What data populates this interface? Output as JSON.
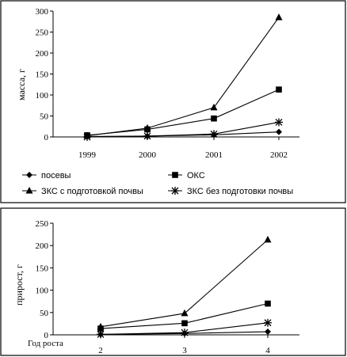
{
  "chart_data": [
    {
      "type": "line",
      "ylabel": "масса, г",
      "xlabel": "",
      "categories": [
        "1999",
        "2000",
        "2001",
        "2002"
      ],
      "ylim": [
        0,
        300
      ],
      "yticks": [
        "0",
        "50",
        "100",
        "150",
        "200",
        "250",
        "300"
      ],
      "grid": false,
      "legend_position": "bottom",
      "series": [
        {
          "name": "посевы",
          "marker": "diamond",
          "values": [
            1,
            2,
            5,
            12
          ]
        },
        {
          "name": "ОКС",
          "marker": "square",
          "values": [
            4,
            18,
            44,
            113
          ]
        },
        {
          "name": "ЗКС с подготовкой почвы",
          "marker": "triangle",
          "values": [
            3,
            21,
            70,
            285
          ]
        },
        {
          "name": "ЗКС без подготовки почвы",
          "marker": "star",
          "values": [
            0,
            2,
            7,
            35
          ]
        }
      ]
    },
    {
      "type": "line",
      "ylabel": "прирост, г",
      "xlabel": "Год роста",
      "categories": [
        "2",
        "3",
        "4"
      ],
      "ylim": [
        0,
        250
      ],
      "yticks": [
        "0",
        "50",
        "100",
        "150",
        "200",
        "250"
      ],
      "grid": false,
      "series": [
        {
          "marker": "diamond",
          "values": [
            1,
            3,
            7
          ]
        },
        {
          "marker": "square",
          "values": [
            14,
            26,
            70
          ]
        },
        {
          "marker": "triangle",
          "values": [
            18,
            48,
            213
          ]
        },
        {
          "marker": "star",
          "values": [
            1,
            5,
            27
          ]
        }
      ]
    }
  ]
}
